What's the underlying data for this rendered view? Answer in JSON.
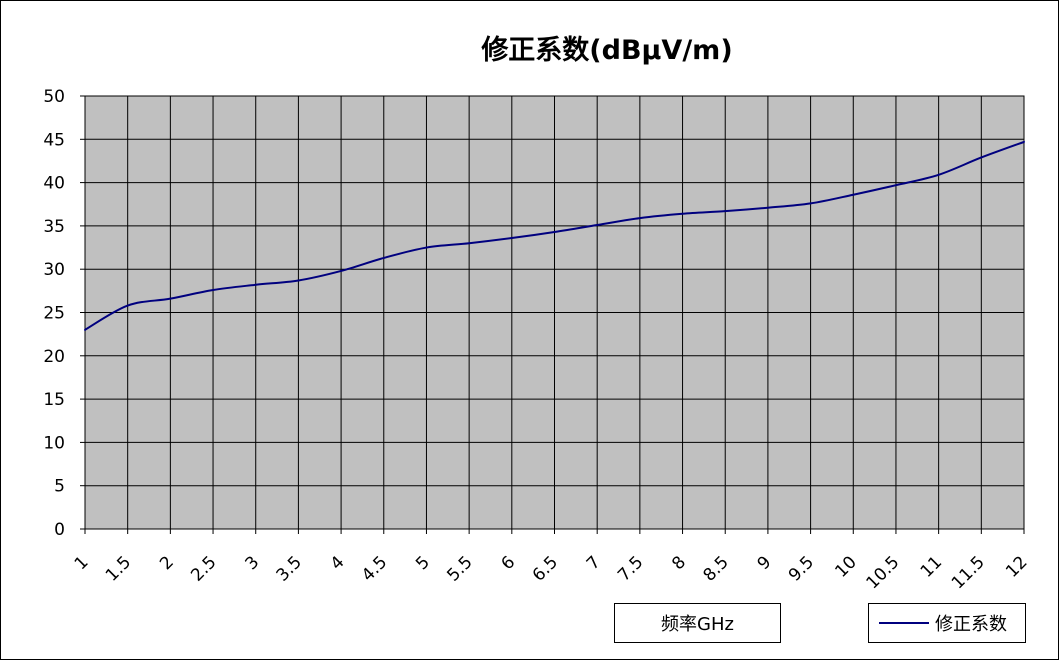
{
  "chart_data": {
    "type": "line",
    "title": "修正系数(dBμV/m)",
    "xlabel": "频率GHz",
    "ylabel": "",
    "x": [
      1,
      1.5,
      2,
      2.5,
      3,
      3.5,
      4,
      4.5,
      5,
      5.5,
      6,
      6.5,
      7,
      7.5,
      8,
      8.5,
      9,
      9.5,
      10,
      10.5,
      11,
      11.5,
      12
    ],
    "x_tick_labels": [
      "1",
      "1.5",
      "2",
      "2.5",
      "3",
      "3.5",
      "4",
      "4.5",
      "5",
      "5.5",
      "6",
      "6.5",
      "7",
      "7.5",
      "8",
      "8.5",
      "9",
      "9.5",
      "10",
      "10.5",
      "11",
      "11.5",
      "12"
    ],
    "y_ticks": [
      0,
      5,
      10,
      15,
      20,
      25,
      30,
      35,
      40,
      45,
      50
    ],
    "ylim": [
      0,
      50
    ],
    "grid": true,
    "legend_position": "bottom-right",
    "series": [
      {
        "name": "修正系数",
        "color": "#00007f",
        "values": [
          23.0,
          25.8,
          26.6,
          27.6,
          28.2,
          28.7,
          29.8,
          31.3,
          32.5,
          33.0,
          33.6,
          34.3,
          35.1,
          35.9,
          36.4,
          36.7,
          37.1,
          37.6,
          38.6,
          39.7,
          40.9,
          42.9,
          44.7
        ]
      }
    ],
    "plot_background": "#c0c0c0"
  }
}
